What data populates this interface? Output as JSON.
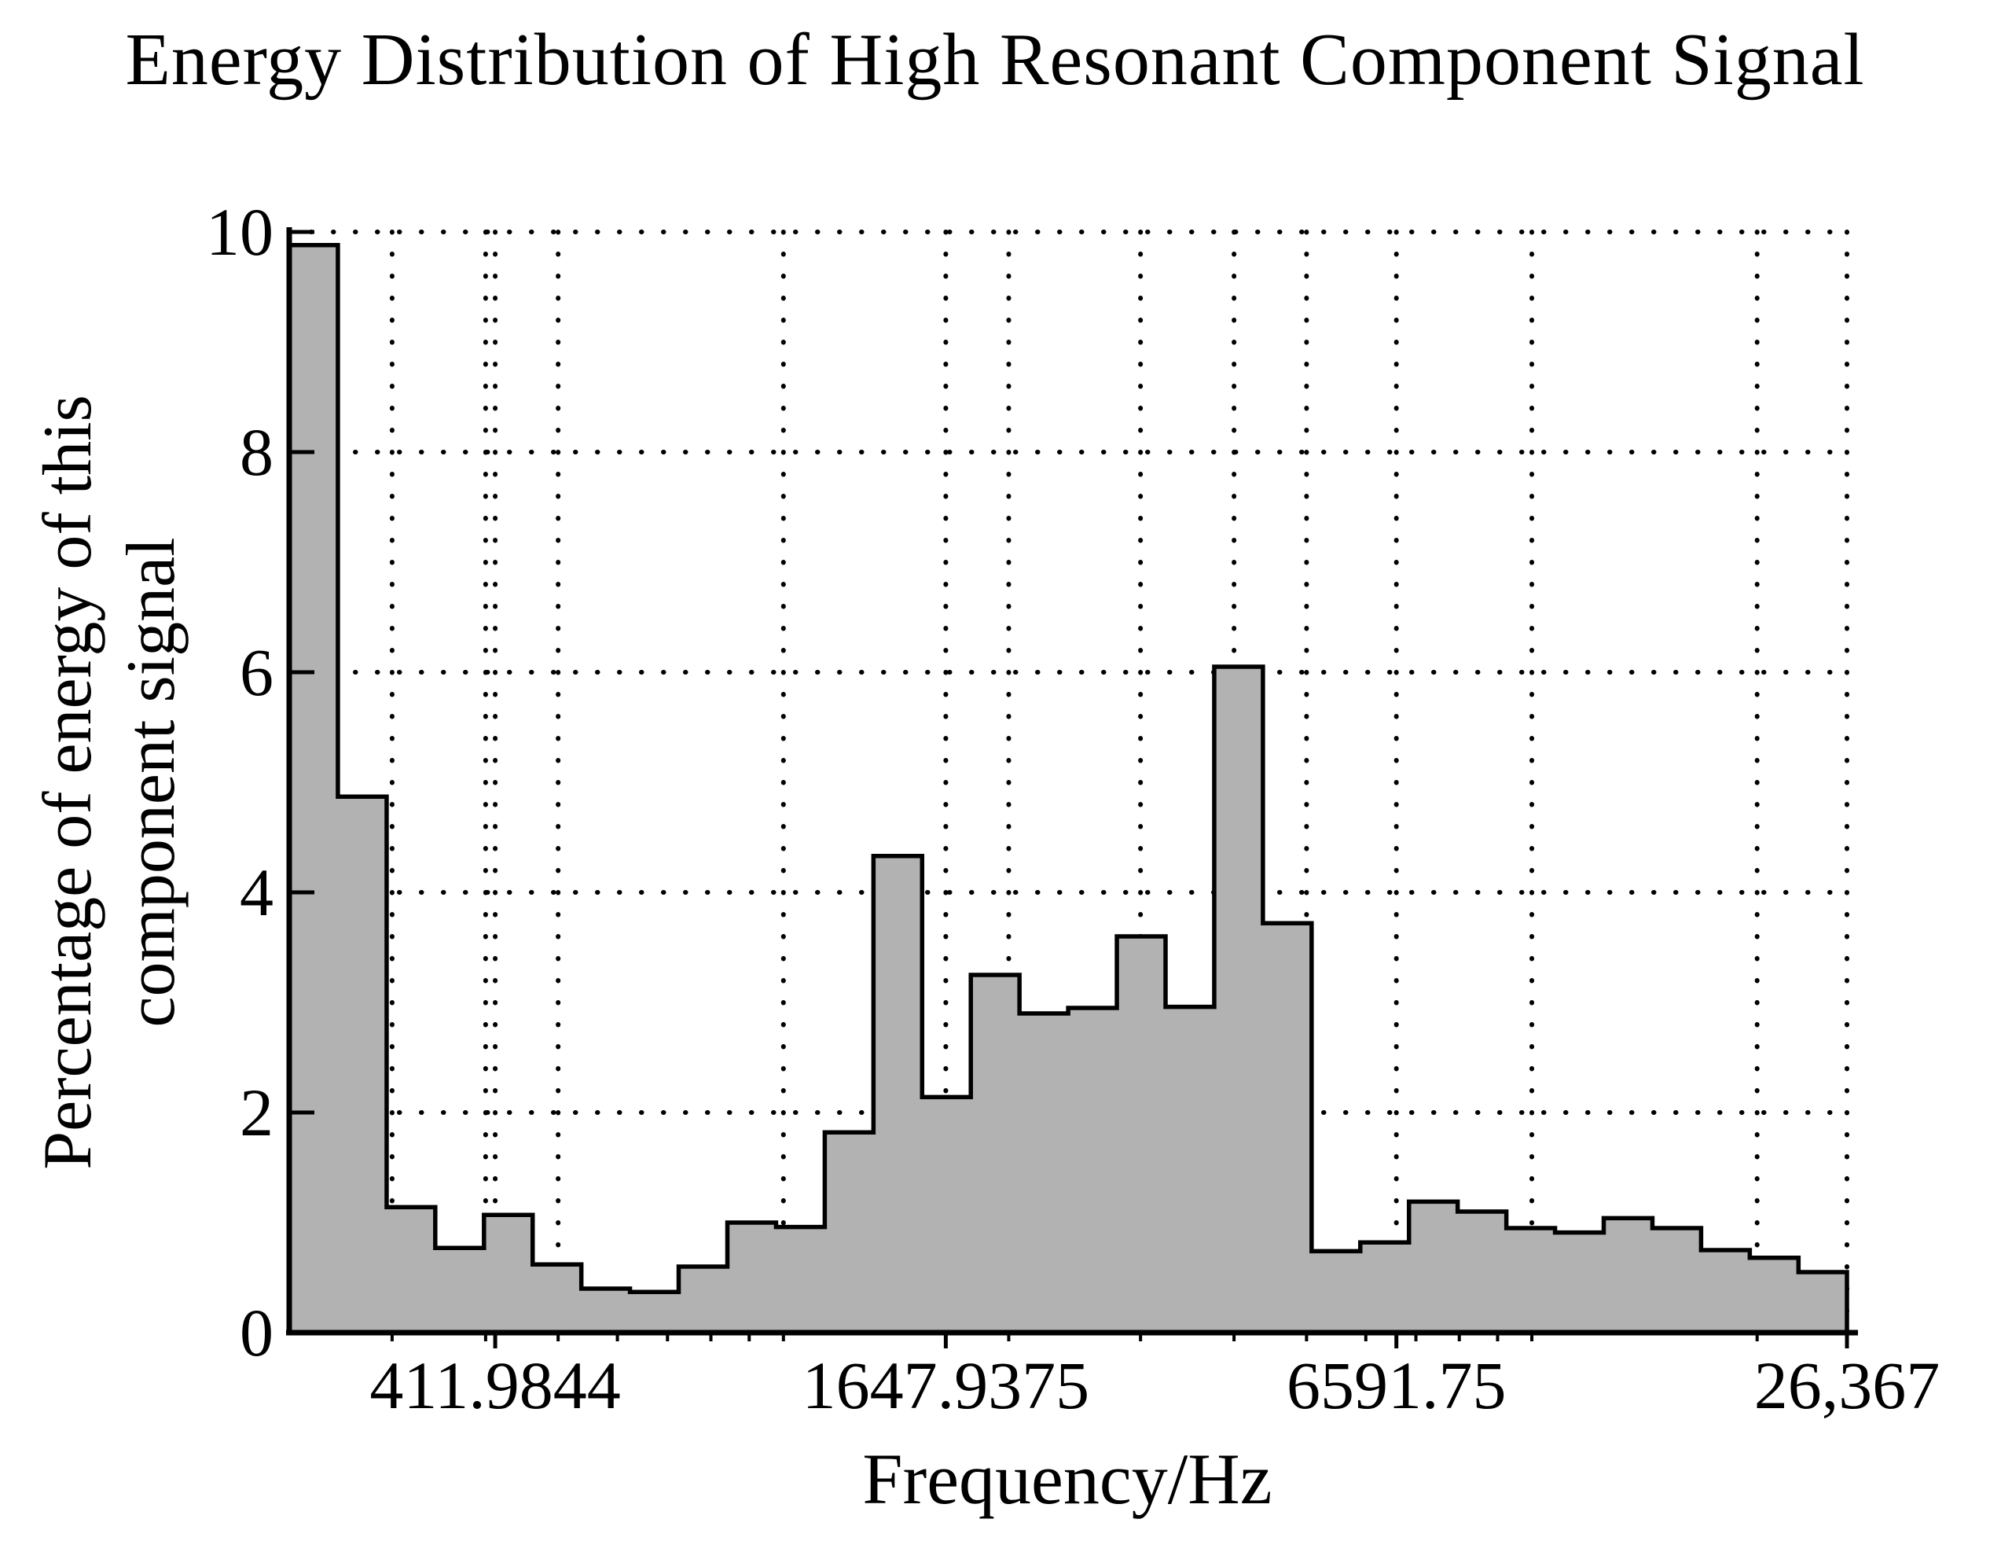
{
  "chart_data": {
    "type": "bar",
    "title": "Energy Distribution of High Resonant Component Signal",
    "xlabel": "Frequency/Hz",
    "ylabel_lines": [
      "Percentage of energy of this",
      "component signal"
    ],
    "x_scale": "log",
    "x_range_hz": [
      218.6,
      26367
    ],
    "ylim": [
      0,
      10
    ],
    "y_ticks": [
      0,
      2,
      4,
      6,
      8,
      10
    ],
    "y_tick_labels": [
      "0",
      "2",
      "4",
      "6",
      "8",
      "10"
    ],
    "x_ticks_hz": [
      411.9844,
      1647.9375,
      6591.75,
      26367
    ],
    "x_tick_labels": [
      "411.9844",
      "1647.9375",
      "6591.75",
      "26,367"
    ],
    "grid": {
      "style": "dotted",
      "horizontal_values": [
        2,
        4,
        6,
        8,
        10
      ],
      "vertical_minor_hz": [
        300,
        400,
        500,
        1000,
        2000,
        3000,
        4000,
        5000,
        10000,
        20000
      ]
    },
    "x_axis_minor_tick_hz": [
      300,
      400,
      500,
      600,
      700,
      800,
      900,
      1000,
      2000,
      3000,
      4000,
      5000,
      6000,
      7000,
      8000,
      9000,
      10000,
      20000
    ],
    "band_edges_hz": [
      218.6,
      253.9,
      295.0,
      342.6,
      398.0,
      462.3,
      537.0,
      623.7,
      724.5,
      841.6,
      977.6,
      1135.6,
      1319.1,
      1532.2,
      1779.8,
      2067.4,
      2401.5,
      2789.5,
      3240.3,
      3763.9,
      4372.1,
      5078.6,
      5899.2,
      6852.5,
      7959.8,
      9246.1,
      10740.2,
      12475.7,
      14491.7,
      16833.5,
      19553.6,
      22713.4,
      26367
    ],
    "values": [
      9.88,
      4.87,
      1.14,
      0.77,
      1.07,
      0.62,
      0.4,
      0.37,
      0.6,
      1.0,
      0.96,
      1.82,
      4.33,
      2.14,
      3.25,
      2.9,
      2.95,
      3.6,
      2.96,
      6.05,
      3.72,
      0.74,
      0.82,
      1.19,
      1.1,
      0.95,
      0.91,
      1.04,
      0.95,
      0.75,
      0.68,
      0.55
    ],
    "bar_fill": "#b2b2b2",
    "line_color": "#000000",
    "legend": null
  }
}
